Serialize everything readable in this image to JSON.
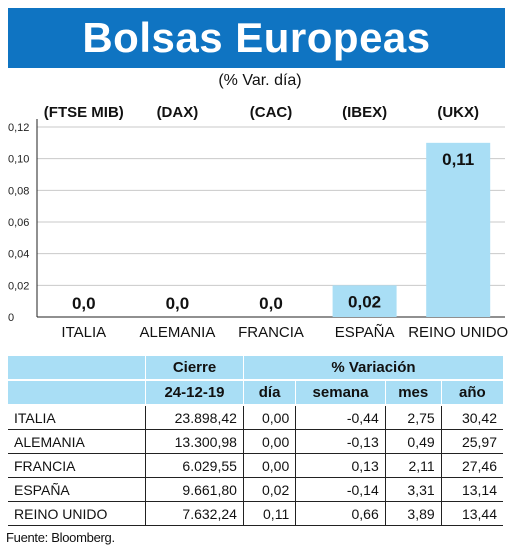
{
  "title": "Bolsas Europeas",
  "subtitle": "(% Var. día)",
  "chart_data": {
    "type": "bar",
    "categories": [
      "ITALIA",
      "ALEMANIA",
      "FRANCIA",
      "ESPAÑA",
      "REINO UNIDO"
    ],
    "indices": [
      "(FTSE MIB)",
      "(DAX)",
      "(CAC)",
      "(IBEX)",
      "(UKX)"
    ],
    "values": [
      0.0,
      0.0,
      0.0,
      0.02,
      0.11
    ],
    "value_labels": [
      "0,0",
      "0,0",
      "0,0",
      "0,02",
      "0,11"
    ],
    "ylim": [
      0,
      0.12
    ],
    "yticks": [
      0,
      0.02,
      0.04,
      0.06,
      0.08,
      0.1,
      0.12
    ],
    "ytick_labels": [
      "0",
      "0,02",
      "0,04",
      "0,06",
      "0,08",
      "0,10",
      "0,12"
    ],
    "grid": true,
    "bar_color": "#a9def5"
  },
  "table": {
    "header_cierre": "Cierre",
    "header_variacion": "% Variación",
    "date": "24-12-19",
    "columns": [
      "día",
      "semana",
      "mes",
      "año"
    ],
    "rows": [
      {
        "name": "ITALIA",
        "cierre": "23.898,42",
        "dia": "0,00",
        "semana": "-0,44",
        "mes": "2,75",
        "ano": "30,42"
      },
      {
        "name": "ALEMANIA",
        "cierre": "13.300,98",
        "dia": "0,00",
        "semana": "-0,13",
        "mes": "0,49",
        "ano": "25,97"
      },
      {
        "name": "FRANCIA",
        "cierre": "6.029,55",
        "dia": "0,00",
        "semana": "0,13",
        "mes": "2,11",
        "ano": "27,46"
      },
      {
        "name": "ESPAÑA",
        "cierre": "9.661,80",
        "dia": "0,02",
        "semana": "-0,14",
        "mes": "3,31",
        "ano": "13,14"
      },
      {
        "name": "REINO UNIDO",
        "cierre": "7.632,24",
        "dia": "0,11",
        "semana": "0,66",
        "mes": "3,89",
        "ano": "13,44"
      }
    ]
  },
  "source": "Fuente: Bloomberg."
}
